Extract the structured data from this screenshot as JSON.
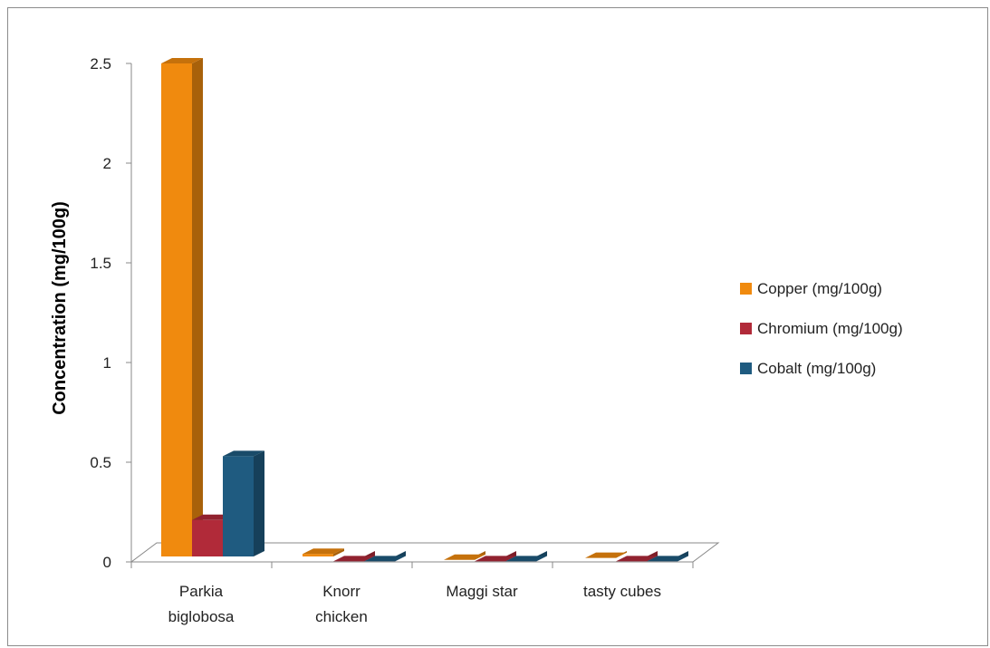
{
  "chart_data": {
    "type": "bar",
    "categories": [
      "Parkia\nbiglobosa",
      "Knorr\nchicken",
      "Maggi star",
      "tasty cubes"
    ],
    "series": [
      {
        "name": "Copper (mg/100g)",
        "values": [
          2.5,
          0.04,
          0.01,
          0.02
        ],
        "color": "#f08a0e"
      },
      {
        "name": "Chromium (mg/100g)",
        "values": [
          0.21,
          0.003,
          0.003,
          0.003
        ],
        "color": "#b12a39"
      },
      {
        "name": "Cobalt (mg/100g)",
        "values": [
          0.53,
          0.003,
          0.003,
          0.003
        ],
        "color": "#1f5b80"
      }
    ],
    "title": "",
    "xlabel": "",
    "ylabel": "Concentration (mg/100g)",
    "ylim": [
      0,
      2.5
    ],
    "yticks": [
      "0",
      "0.5",
      "1",
      "1.5",
      "2",
      "2.5"
    ],
    "grid": false,
    "legend_position": "right",
    "style": "3d"
  }
}
